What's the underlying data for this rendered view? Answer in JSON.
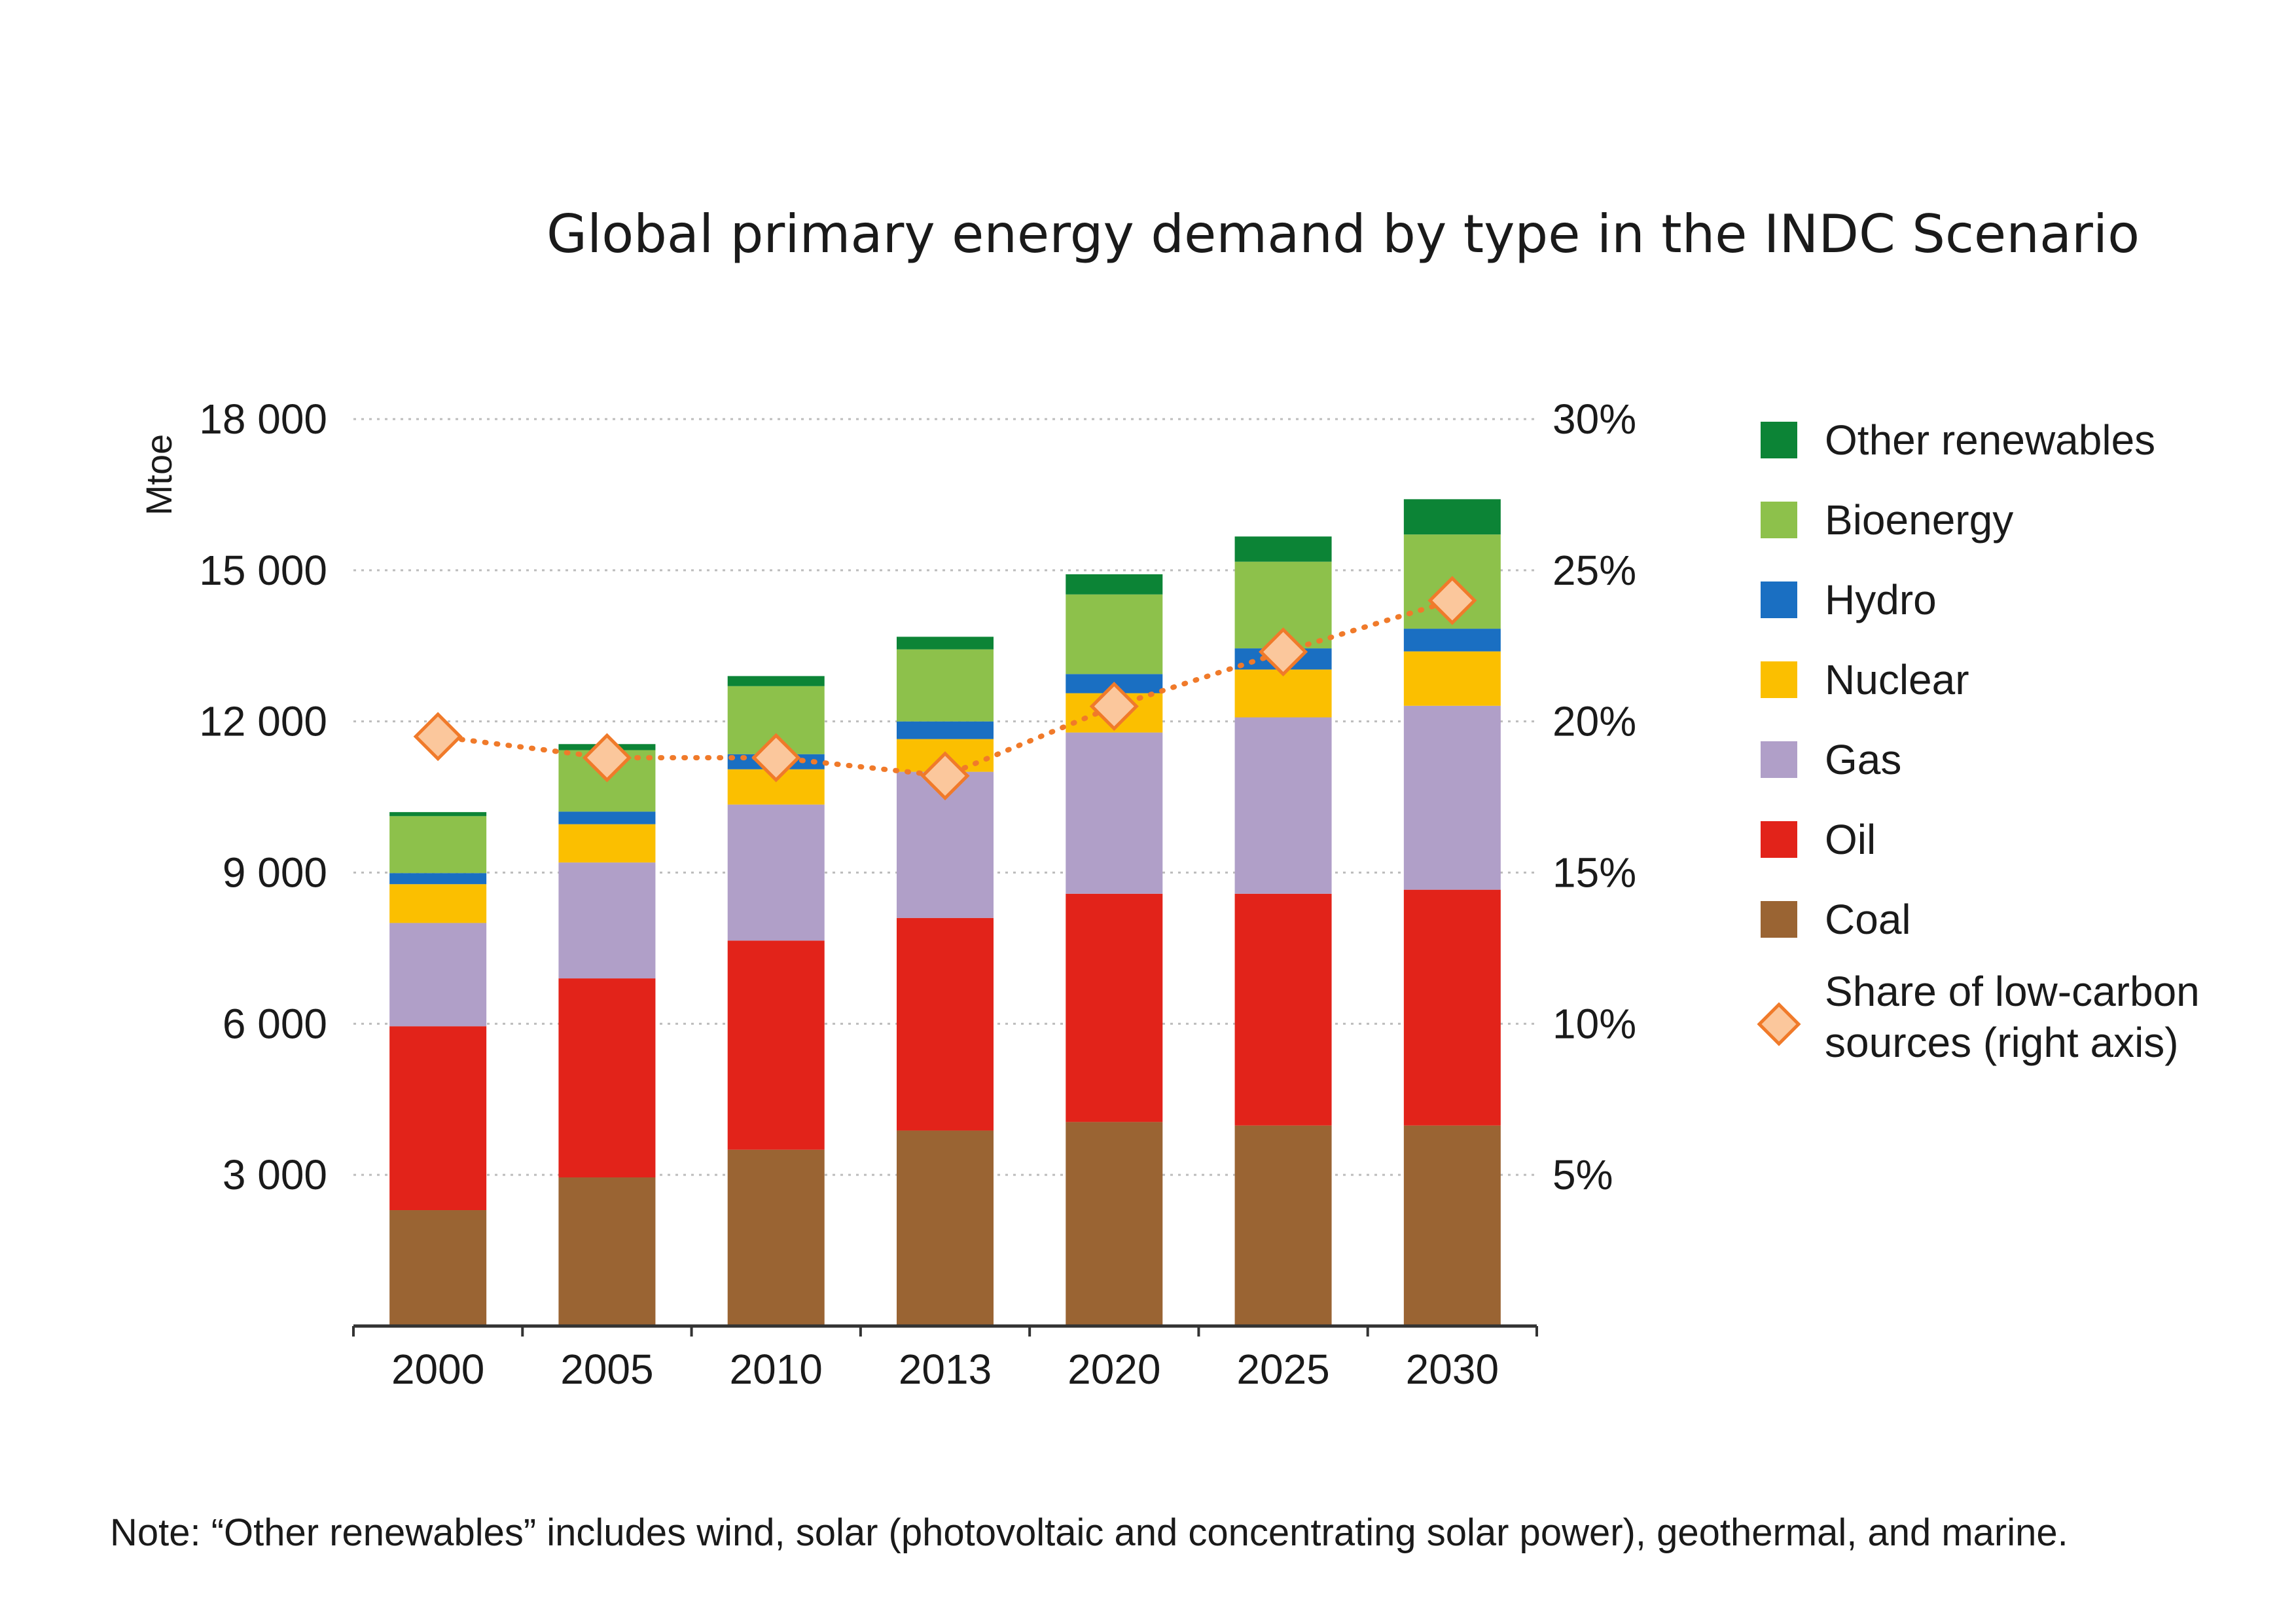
{
  "chart_data": {
    "type": "bar",
    "stacked": true,
    "title": "Global primary energy demand by type in the INDC Scenario",
    "ylabel": "Mtoe",
    "ylim": [
      0,
      18000
    ],
    "y_ticks": [
      "3 000",
      "6 000",
      "9 000",
      "12 000",
      "15 000",
      "18 000"
    ],
    "y_tick_values": [
      3000,
      6000,
      9000,
      12000,
      15000,
      18000
    ],
    "y2lim": [
      0,
      30
    ],
    "y2_ticks": [
      "5%",
      "10%",
      "15%",
      "20%",
      "25%",
      "30%"
    ],
    "y2_tick_values": [
      5,
      10,
      15,
      20,
      25,
      30
    ],
    "categories": [
      "2000",
      "2005",
      "2010",
      "2013",
      "2020",
      "2025",
      "2030"
    ],
    "grid": true,
    "legend_position": "right",
    "series": [
      {
        "name": "Coal",
        "color": "#9a6433",
        "values": [
          2300,
          2950,
          3500,
          3880,
          4050,
          3980,
          3980
        ]
      },
      {
        "name": "Oil",
        "color": "#e2231a",
        "values": [
          3650,
          3950,
          4150,
          4220,
          4530,
          4600,
          4680
        ]
      },
      {
        "name": "Gas",
        "color": "#b09fc8",
        "values": [
          2050,
          2300,
          2700,
          2900,
          3200,
          3500,
          3650
        ]
      },
      {
        "name": "Nuclear",
        "color": "#fbbf00",
        "values": [
          770,
          760,
          700,
          650,
          780,
          950,
          1080
        ]
      },
      {
        "name": "Hydro",
        "color": "#1a6fc2",
        "values": [
          220,
          250,
          300,
          350,
          380,
          420,
          450
        ]
      },
      {
        "name": "Bioenergy",
        "color": "#8dc14b",
        "values": [
          1130,
          1220,
          1350,
          1430,
          1580,
          1720,
          1870
        ]
      },
      {
        "name": "Other renewables",
        "color": "#0c8436",
        "values": [
          80,
          120,
          200,
          250,
          400,
          500,
          700
        ]
      }
    ],
    "line_series": {
      "name": "Share of low-carbon sources (right axis)",
      "axis": "right",
      "color": "#f07a2a",
      "marker_fill": "#fbc79c",
      "values": [
        19.5,
        18.8,
        18.8,
        18.2,
        20.5,
        22.3,
        24.0
      ]
    },
    "legend": [
      {
        "name": "Other renewables",
        "color": "#0c8436",
        "marker": "square"
      },
      {
        "name": "Bioenergy",
        "color": "#8dc14b",
        "marker": "square"
      },
      {
        "name": "Hydro",
        "color": "#1a6fc2",
        "marker": "square"
      },
      {
        "name": "Nuclear",
        "color": "#fbbf00",
        "marker": "square"
      },
      {
        "name": "Gas",
        "color": "#b09fc8",
        "marker": "square"
      },
      {
        "name": "Oil",
        "color": "#e2231a",
        "marker": "square"
      },
      {
        "name": "Coal",
        "color": "#9a6433",
        "marker": "square"
      },
      {
        "name_lines": [
          "Share of low-carbon",
          "sources (right axis)"
        ],
        "color": "#f07a2a",
        "marker": "diamond"
      }
    ]
  },
  "note": "Note: “Other renewables” includes wind, solar (photovoltaic and concentrating solar power), geothermal, and marine."
}
